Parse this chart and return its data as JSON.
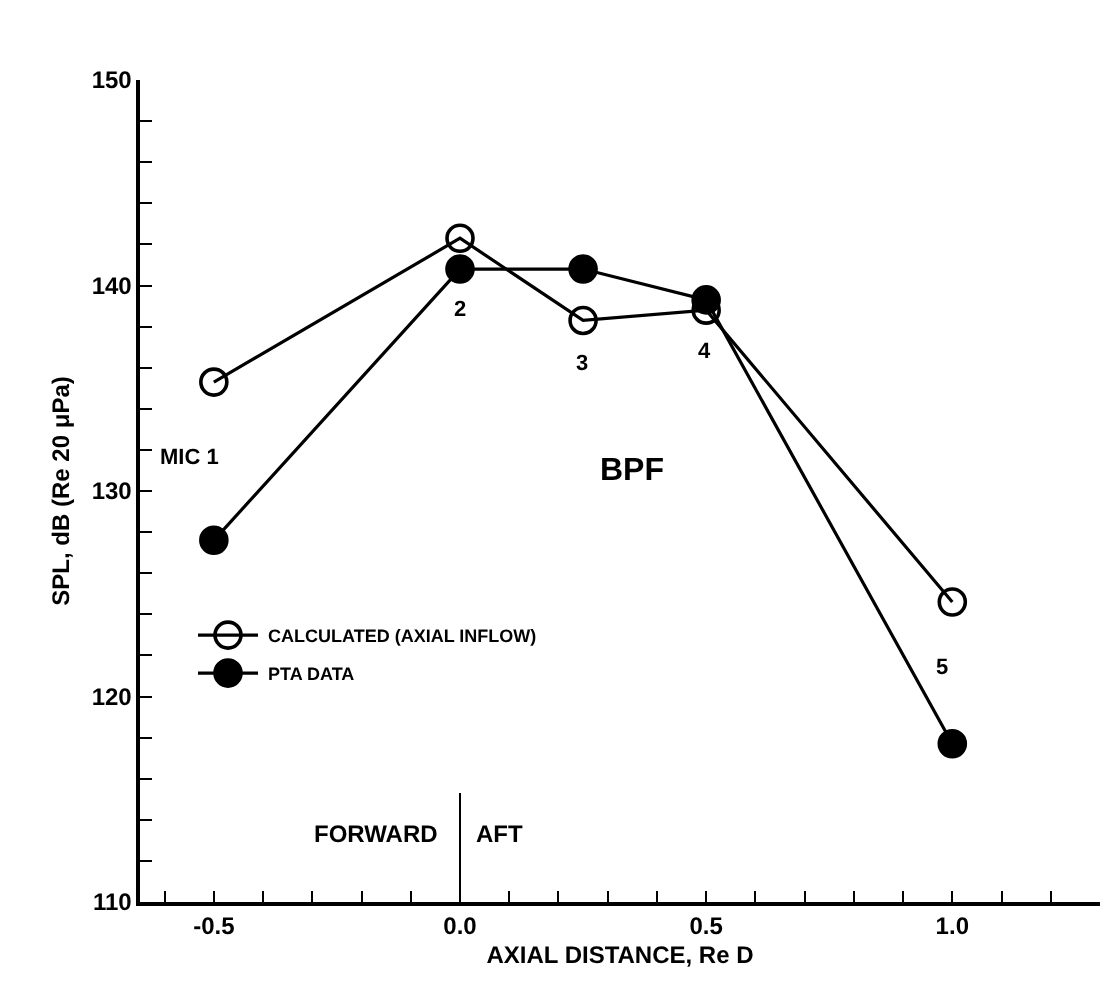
{
  "chart_data": {
    "type": "line",
    "xlabel": "AXIAL DISTANCE, Re D",
    "ylabel": "SPL, dB (Re 20 μPa)",
    "x": [
      -0.5,
      0.0,
      0.25,
      0.5,
      1.0
    ],
    "series": [
      {
        "name": "CALCULATED (AXIAL INFLOW)",
        "color": "#000000",
        "marker": "circle-open",
        "values": [
          135.3,
          142.3,
          138.3,
          138.8,
          124.6
        ]
      },
      {
        "name": "PTA DATA",
        "color": "#000000",
        "marker": "circle",
        "values": [
          127.6,
          140.8,
          140.8,
          139.3,
          117.7
        ]
      }
    ],
    "xlim": [
      -0.65,
      1.3
    ],
    "ylim": [
      110,
      150
    ],
    "xticks": [
      {
        "value": -0.6,
        "label": null
      },
      {
        "value": -0.5,
        "label": "-0.5"
      },
      {
        "value": -0.4,
        "label": null
      },
      {
        "value": -0.3,
        "label": null
      },
      {
        "value": -0.2,
        "label": null
      },
      {
        "value": -0.1,
        "label": null
      },
      {
        "value": 0.0,
        "label": "0.0"
      },
      {
        "value": 0.1,
        "label": null
      },
      {
        "value": 0.2,
        "label": null
      },
      {
        "value": 0.3,
        "label": null
      },
      {
        "value": 0.4,
        "label": null
      },
      {
        "value": 0.5,
        "label": "0.5"
      },
      {
        "value": 0.6,
        "label": null
      },
      {
        "value": 0.7,
        "label": null
      },
      {
        "value": 0.8,
        "label": null
      },
      {
        "value": 0.9,
        "label": null
      },
      {
        "value": 1.0,
        "label": "1.0"
      },
      {
        "value": 1.1,
        "label": null
      },
      {
        "value": 1.2,
        "label": null
      }
    ],
    "yticks": [
      110,
      {
        "value": 112,
        "label": null
      },
      {
        "value": 114,
        "label": null
      },
      {
        "value": 116,
        "label": null
      },
      {
        "value": 118,
        "label": null
      },
      120,
      {
        "value": 122,
        "label": null
      },
      {
        "value": 124,
        "label": null
      },
      {
        "value": 126,
        "label": null
      },
      {
        "value": 128,
        "label": null
      },
      130,
      {
        "value": 132,
        "label": null
      },
      {
        "value": 134,
        "label": null
      },
      {
        "value": 136,
        "label": null
      },
      {
        "value": 138,
        "label": null
      },
      140,
      {
        "value": 142,
        "label": null
      },
      {
        "value": 144,
        "label": null
      },
      {
        "value": 146,
        "label": null
      },
      {
        "value": 148,
        "label": null
      },
      150
    ],
    "ref_lines": [
      {
        "axis": "x",
        "value": 0.0,
        "label": null
      }
    ],
    "annotations": [
      "MIC 1",
      "2",
      "3",
      "4",
      "5",
      "BPF",
      "FORWARD",
      "AFT"
    ],
    "grid": false,
    "legend": "left",
    "line_style": "solid"
  }
}
